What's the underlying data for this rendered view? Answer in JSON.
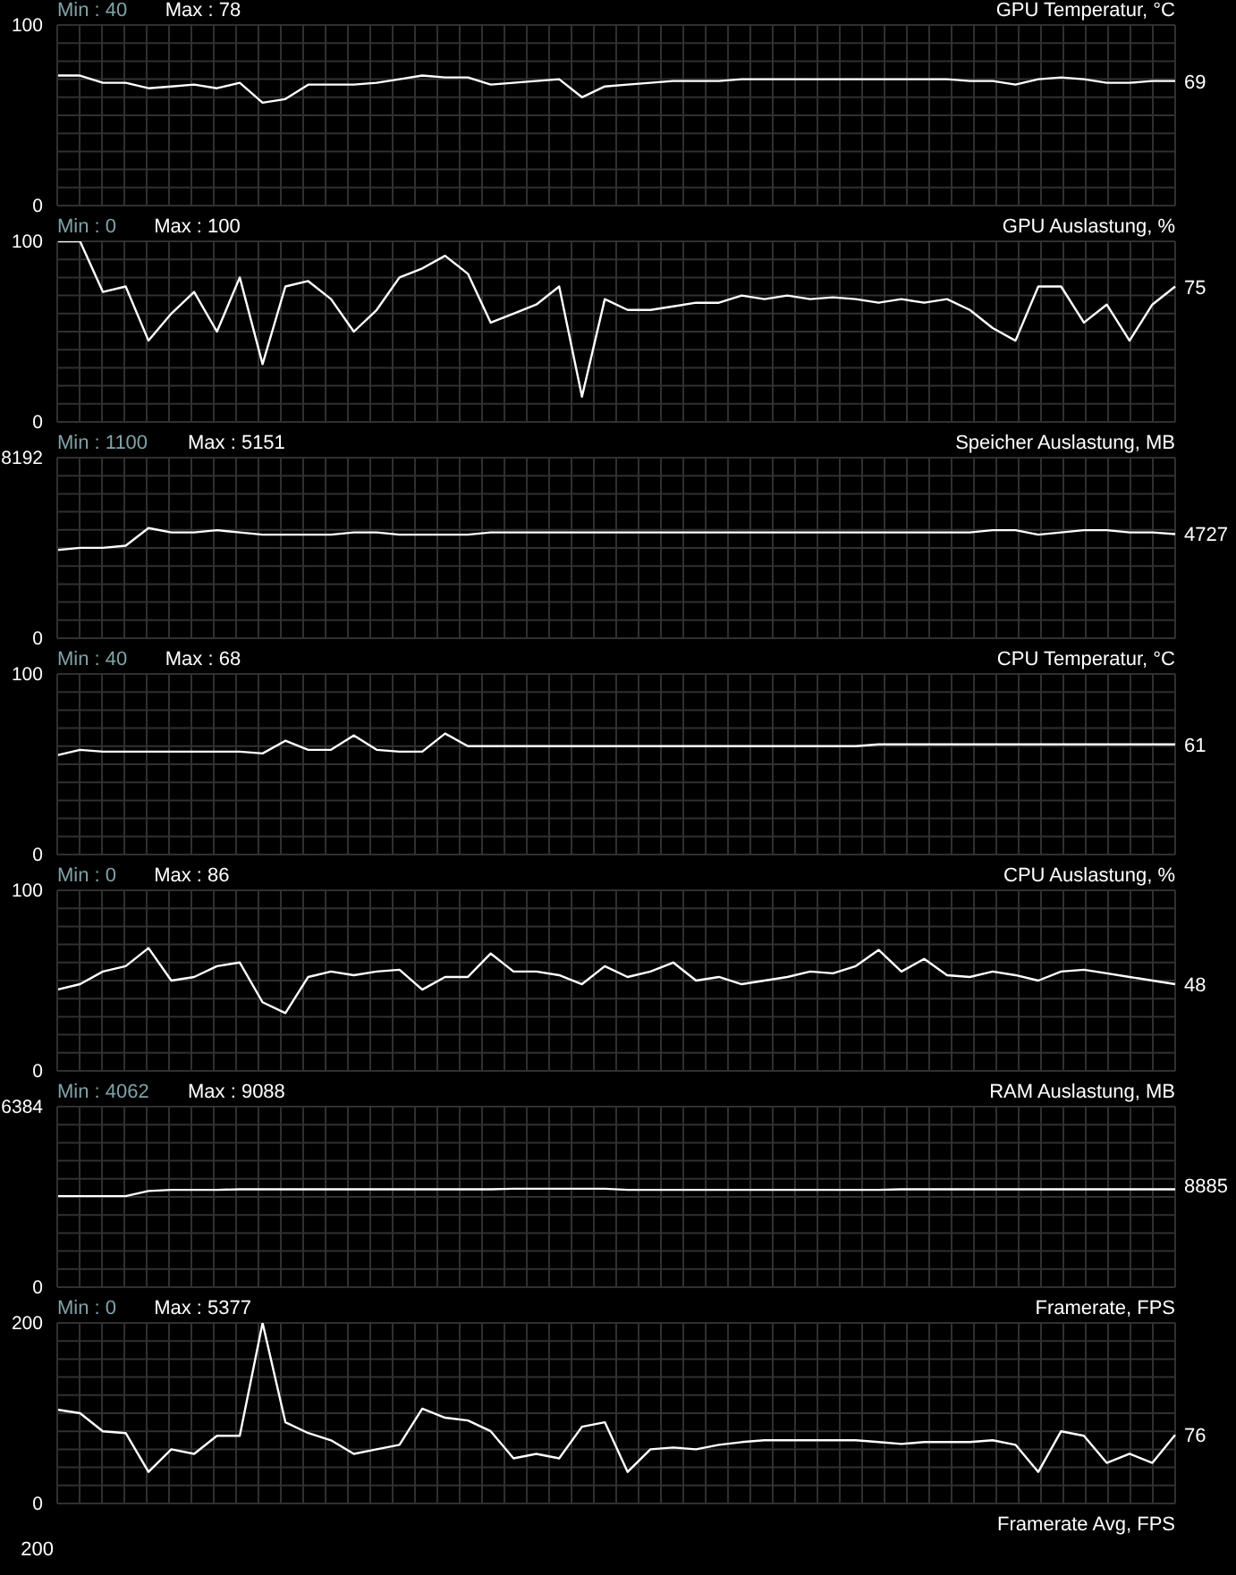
{
  "chart_data": [
    {
      "type": "line",
      "title": "GPU Temperatur, °C",
      "annotations": [
        "Min : 40",
        "Max : 78"
      ],
      "categories": [
        null,
        null,
        null,
        null,
        null,
        null,
        null,
        null,
        null,
        null,
        null,
        null,
        null,
        null,
        null,
        null,
        null,
        null,
        null,
        null,
        null,
        null,
        null,
        null,
        null,
        null,
        null,
        null,
        null,
        null,
        null,
        null,
        null,
        null,
        null,
        null,
        null,
        null,
        null,
        null,
        null,
        null,
        null,
        null,
        null,
        null,
        null,
        null,
        null,
        null
      ],
      "ylim": [
        0,
        100
      ],
      "yticks": [
        0,
        100
      ],
      "grid": true,
      "tick_labels": "y",
      "series": [
        {
          "color": "#ffffff",
          "values": [
            72,
            72,
            68,
            68,
            65,
            66,
            67,
            65,
            68,
            57,
            59,
            67,
            67,
            67,
            68,
            70,
            72,
            71,
            71,
            67,
            68,
            69,
            70,
            60,
            66,
            67,
            68,
            69,
            69,
            69,
            70,
            70,
            70,
            70,
            70,
            70,
            70,
            70,
            70,
            70,
            69,
            69,
            67,
            70,
            71,
            70,
            68,
            68,
            69,
            69
          ],
          "value_labels": [
            null,
            null,
            null,
            null,
            null,
            null,
            null,
            null,
            null,
            null,
            null,
            null,
            null,
            null,
            null,
            null,
            null,
            null,
            null,
            null,
            null,
            null,
            null,
            null,
            null,
            null,
            null,
            null,
            null,
            null,
            null,
            null,
            null,
            null,
            null,
            null,
            null,
            null,
            null,
            null,
            null,
            null,
            null,
            null,
            null,
            null,
            null,
            null,
            null,
            "69"
          ]
        }
      ]
    },
    {
      "type": "line",
      "title": "GPU Auslastung, %",
      "annotations": [
        "Min : 0",
        "Max : 100"
      ],
      "categories": [
        null,
        null,
        null,
        null,
        null,
        null,
        null,
        null,
        null,
        null,
        null,
        null,
        null,
        null,
        null,
        null,
        null,
        null,
        null,
        null,
        null,
        null,
        null,
        null,
        null,
        null,
        null,
        null,
        null,
        null,
        null,
        null,
        null,
        null,
        null,
        null,
        null,
        null,
        null,
        null,
        null,
        null,
        null,
        null,
        null,
        null,
        null,
        null,
        null,
        null
      ],
      "ylim": [
        0,
        100
      ],
      "yticks": [
        0,
        100
      ],
      "grid": true,
      "tick_labels": "y",
      "series": [
        {
          "color": "#ffffff",
          "values": [
            100,
            100,
            72,
            75,
            45,
            60,
            72,
            50,
            80,
            32,
            75,
            78,
            68,
            50,
            62,
            80,
            85,
            92,
            82,
            55,
            60,
            65,
            75,
            14,
            68,
            62,
            62,
            64,
            66,
            66,
            70,
            68,
            70,
            68,
            69,
            68,
            66,
            68,
            66,
            68,
            62,
            52,
            45,
            75,
            75,
            55,
            65,
            45,
            65,
            75
          ],
          "value_labels": [
            null,
            null,
            null,
            null,
            null,
            null,
            null,
            null,
            null,
            null,
            null,
            null,
            null,
            null,
            null,
            null,
            null,
            null,
            null,
            null,
            null,
            null,
            null,
            null,
            null,
            null,
            null,
            null,
            null,
            null,
            null,
            null,
            null,
            null,
            null,
            null,
            null,
            null,
            null,
            null,
            null,
            null,
            null,
            null,
            null,
            null,
            null,
            null,
            null,
            "75"
          ]
        }
      ]
    },
    {
      "type": "line",
      "title": "Speicher Auslastung, MB",
      "annotations": [
        "Min : 1100",
        "Max : 5151"
      ],
      "categories": [
        null,
        null,
        null,
        null,
        null,
        null,
        null,
        null,
        null,
        null,
        null,
        null,
        null,
        null,
        null,
        null,
        null,
        null,
        null,
        null,
        null,
        null,
        null,
        null,
        null,
        null,
        null,
        null,
        null,
        null,
        null,
        null,
        null,
        null,
        null,
        null,
        null,
        null,
        null,
        null,
        null,
        null,
        null,
        null,
        null,
        null,
        null,
        null,
        null,
        null
      ],
      "ylim": [
        0,
        8192
      ],
      "yticks": [
        0,
        8192
      ],
      "grid": true,
      "tick_labels": "y",
      "series": [
        {
          "color": "#ffffff",
          "values": [
            4000,
            4100,
            4100,
            4200,
            5000,
            4800,
            4800,
            4900,
            4800,
            4700,
            4700,
            4700,
            4700,
            4800,
            4800,
            4700,
            4700,
            4700,
            4700,
            4800,
            4800,
            4800,
            4800,
            4800,
            4800,
            4800,
            4800,
            4800,
            4800,
            4800,
            4800,
            4800,
            4800,
            4800,
            4800,
            4800,
            4800,
            4800,
            4800,
            4800,
            4800,
            4900,
            4900,
            4700,
            4800,
            4900,
            4900,
            4800,
            4800,
            4727
          ],
          "value_labels": [
            null,
            null,
            null,
            null,
            null,
            null,
            null,
            null,
            null,
            null,
            null,
            null,
            null,
            null,
            null,
            null,
            null,
            null,
            null,
            null,
            null,
            null,
            null,
            null,
            null,
            null,
            null,
            null,
            null,
            null,
            null,
            null,
            null,
            null,
            null,
            null,
            null,
            null,
            null,
            null,
            null,
            null,
            null,
            null,
            null,
            null,
            null,
            null,
            null,
            "4727"
          ]
        }
      ]
    },
    {
      "type": "line",
      "title": "CPU Temperatur, °C",
      "annotations": [
        "Min : 40",
        "Max : 68"
      ],
      "categories": [
        null,
        null,
        null,
        null,
        null,
        null,
        null,
        null,
        null,
        null,
        null,
        null,
        null,
        null,
        null,
        null,
        null,
        null,
        null,
        null,
        null,
        null,
        null,
        null,
        null,
        null,
        null,
        null,
        null,
        null,
        null,
        null,
        null,
        null,
        null,
        null,
        null,
        null,
        null,
        null,
        null,
        null,
        null,
        null,
        null,
        null,
        null,
        null,
        null,
        null
      ],
      "ylim": [
        0,
        100
      ],
      "yticks": [
        0,
        100
      ],
      "grid": true,
      "tick_labels": "y",
      "series": [
        {
          "color": "#ffffff",
          "values": [
            55,
            58,
            57,
            57,
            57,
            57,
            57,
            57,
            57,
            56,
            63,
            58,
            58,
            66,
            58,
            57,
            57,
            67,
            60,
            60,
            60,
            60,
            60,
            60,
            60,
            60,
            60,
            60,
            60,
            60,
            60,
            60,
            60,
            60,
            60,
            60,
            61,
            61,
            61,
            61,
            61,
            61,
            61,
            61,
            61,
            61,
            61,
            61,
            61,
            61
          ],
          "value_labels": [
            null,
            null,
            null,
            null,
            null,
            null,
            null,
            null,
            null,
            null,
            null,
            null,
            null,
            null,
            null,
            null,
            null,
            null,
            null,
            null,
            null,
            null,
            null,
            null,
            null,
            null,
            null,
            null,
            null,
            null,
            null,
            null,
            null,
            null,
            null,
            null,
            null,
            null,
            null,
            null,
            null,
            null,
            null,
            null,
            null,
            null,
            null,
            null,
            null,
            "61"
          ]
        }
      ]
    },
    {
      "type": "line",
      "title": "CPU Auslastung, %",
      "annotations": [
        "Min : 0",
        "Max : 86"
      ],
      "categories": [
        null,
        null,
        null,
        null,
        null,
        null,
        null,
        null,
        null,
        null,
        null,
        null,
        null,
        null,
        null,
        null,
        null,
        null,
        null,
        null,
        null,
        null,
        null,
        null,
        null,
        null,
        null,
        null,
        null,
        null,
        null,
        null,
        null,
        null,
        null,
        null,
        null,
        null,
        null,
        null,
        null,
        null,
        null,
        null,
        null,
        null,
        null,
        null,
        null,
        null
      ],
      "ylim": [
        0,
        100
      ],
      "yticks": [
        0,
        100
      ],
      "grid": true,
      "tick_labels": "y",
      "series": [
        {
          "color": "#ffffff",
          "values": [
            45,
            48,
            55,
            58,
            68,
            50,
            52,
            58,
            60,
            38,
            32,
            52,
            55,
            53,
            55,
            56,
            45,
            52,
            52,
            65,
            55,
            55,
            53,
            48,
            58,
            52,
            55,
            60,
            50,
            52,
            48,
            50,
            52,
            55,
            54,
            58,
            67,
            55,
            62,
            53,
            52,
            55,
            53,
            50,
            55,
            56,
            54,
            52,
            50,
            48
          ],
          "value_labels": [
            null,
            null,
            null,
            null,
            null,
            null,
            null,
            null,
            null,
            null,
            null,
            null,
            null,
            null,
            null,
            null,
            null,
            null,
            null,
            null,
            null,
            null,
            null,
            null,
            null,
            null,
            null,
            null,
            null,
            null,
            null,
            null,
            null,
            null,
            null,
            null,
            null,
            null,
            null,
            null,
            null,
            null,
            null,
            null,
            null,
            null,
            null,
            null,
            null,
            "48"
          ]
        }
      ]
    },
    {
      "type": "line",
      "title": "RAM Auslastung, MB",
      "annotations": [
        "Min : 4062",
        "Max : 9088",
        "8885"
      ],
      "categories": [
        null,
        null,
        null,
        null,
        null,
        null,
        null,
        null,
        null,
        null,
        null,
        null,
        null,
        null,
        null,
        null,
        null,
        null,
        null,
        null,
        null,
        null,
        null,
        null,
        null,
        null,
        null,
        null,
        null,
        null,
        null,
        null,
        null,
        null,
        null,
        null,
        null,
        null,
        null,
        null,
        null,
        null,
        null,
        null,
        null,
        null,
        null,
        null,
        null,
        null
      ],
      "ylim": [
        0,
        6384
      ],
      "yticks": [
        0,
        6384
      ],
      "grid": true,
      "tick_labels": "y",
      "series": [
        {
          "color": "#ffffff",
          "values": [
            3220,
            3220,
            3220,
            3220,
            3400,
            3440,
            3440,
            3440,
            3460,
            3460,
            3460,
            3460,
            3460,
            3460,
            3460,
            3460,
            3460,
            3460,
            3460,
            3460,
            3480,
            3480,
            3480,
            3480,
            3480,
            3440,
            3440,
            3440,
            3440,
            3440,
            3440,
            3440,
            3440,
            3440,
            3440,
            3440,
            3440,
            3460,
            3460,
            3460,
            3460,
            3460,
            3460,
            3460,
            3460,
            3460,
            3460,
            3460,
            3460,
            3460
          ]
        }
      ]
    },
    {
      "type": "line",
      "title": "Framerate, FPS",
      "annotations": [
        "Min : 0",
        "Max : 5377"
      ],
      "categories": [
        null,
        null,
        null,
        null,
        null,
        null,
        null,
        null,
        null,
        null,
        null,
        null,
        null,
        null,
        null,
        null,
        null,
        null,
        null,
        null,
        null,
        null,
        null,
        null,
        null,
        null,
        null,
        null,
        null,
        null,
        null,
        null,
        null,
        null,
        null,
        null,
        null,
        null,
        null,
        null,
        null,
        null,
        null,
        null,
        null,
        null,
        null,
        null,
        null,
        null
      ],
      "ylim": [
        0,
        200
      ],
      "yticks": [
        0,
        200
      ],
      "grid": true,
      "tick_labels": "y",
      "series": [
        {
          "color": "#ffffff",
          "values": [
            104,
            100,
            80,
            78,
            35,
            60,
            55,
            75,
            75,
            200,
            90,
            78,
            70,
            55,
            60,
            65,
            105,
            95,
            92,
            80,
            50,
            55,
            50,
            85,
            90,
            35,
            60,
            62,
            60,
            65,
            68,
            70,
            70,
            70,
            70,
            70,
            68,
            66,
            68,
            68,
            68,
            70,
            65,
            35,
            80,
            75,
            45,
            55,
            45,
            76
          ],
          "value_labels": [
            null,
            null,
            null,
            null,
            null,
            null,
            null,
            null,
            null,
            null,
            null,
            null,
            null,
            null,
            null,
            null,
            null,
            null,
            null,
            null,
            null,
            null,
            null,
            null,
            null,
            null,
            null,
            null,
            null,
            null,
            null,
            null,
            null,
            null,
            null,
            null,
            null,
            null,
            null,
            null,
            null,
            null,
            null,
            null,
            null,
            null,
            null,
            null,
            null,
            "76"
          ]
        }
      ]
    },
    {
      "type": "other",
      "title": "Framerate Avg, FPS",
      "annotations": [
        "200"
      ]
    }
  ]
}
